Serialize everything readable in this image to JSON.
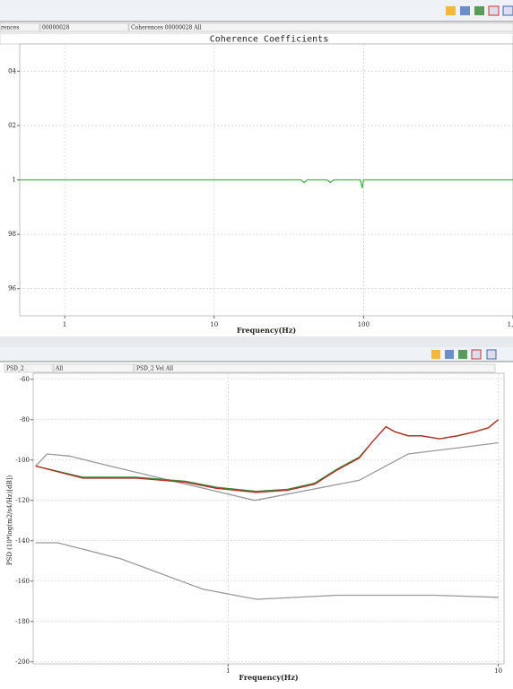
{
  "panels": [
    {
      "selectors": [
        "rences",
        "00000028",
        "Coherences 00000028 All"
      ]
    },
    {
      "selectors": [
        "PSD_2",
        "All",
        "PSD_2 Vel All"
      ]
    }
  ],
  "chart_data": [
    {
      "type": "line",
      "title": "Coherence Coefficients",
      "x_label": "Frequency(Hz)",
      "log_x": true,
      "grid": true,
      "xlim": [
        0.5,
        1000
      ],
      "xticks": [
        1,
        10,
        100,
        {
          "value": 1000,
          "label": "1,"
        }
      ],
      "ylim": [
        0.95,
        1.05
      ],
      "yticks": [
        {
          "value": 1.04,
          "label": "04"
        },
        {
          "value": 1.02,
          "label": "02"
        },
        1,
        {
          "value": 0.98,
          "label": "98"
        },
        {
          "value": 0.96,
          "label": "96"
        }
      ],
      "series": [
        {
          "color": "#4cae4c",
          "x": [
            0.5,
            38,
            40,
            42,
            57,
            60,
            63,
            95,
            98,
            100,
            1000
          ],
          "values": [
            1,
            1,
            0.999,
            1,
            1,
            0.999,
            1,
            1,
            0.997,
            1,
            1
          ]
        }
      ]
    },
    {
      "type": "line",
      "y_label": "PSD (10*log(m2/s4/Hz)[dB])",
      "x_label": "Frequency(Hz)",
      "log_x": true,
      "grid": true,
      "xlim": [
        0.19,
        10.5
      ],
      "xticks": [
        1,
        10
      ],
      "ylim": [
        -201,
        -57
      ],
      "yticks": [
        -60,
        -80,
        -100,
        -120,
        -140,
        -160,
        -180,
        -200
      ],
      "series": [
        {
          "color": "#999999",
          "x": [
            0.194,
            0.214,
            0.258,
            0.393,
            1.256,
            3.06,
            4.64,
            10
          ],
          "values": [
            -103,
            -97,
            -98,
            -104,
            -120,
            -110,
            -97,
            -91.5
          ]
        },
        {
          "color": "#999999",
          "x": [
            0.194,
            0.234,
            0.402,
            0.808,
            1.275,
            2.53,
            5.83,
            10
          ],
          "values": [
            -141,
            -141,
            -149,
            -164,
            -169,
            -167,
            -167,
            -168
          ]
        },
        {
          "color": "#3a8a3a",
          "x": [
            0.194,
            0.29,
            0.457,
            0.694,
            0.906,
            1.27,
            1.66,
            2.09,
            2.53,
            3.06,
            3.42,
            3.84,
            4.14,
            4.64,
            5.2,
            6.06,
            7.05,
            8.2,
            9.2,
            10
          ],
          "values": [
            -103,
            -108.5,
            -108.5,
            -110.5,
            -113.5,
            -115.5,
            -114.5,
            -111.5,
            -104.5,
            -98.5,
            -91,
            -83.5,
            -86,
            -88,
            -88,
            -89.5,
            -88,
            -86,
            -84,
            -80
          ]
        },
        {
          "color": "#b52a22",
          "x": [
            0.194,
            0.29,
            0.457,
            0.694,
            0.906,
            1.27,
            1.66,
            2.09,
            2.53,
            3.06,
            3.42,
            3.84,
            4.14,
            4.64,
            5.2,
            6.06,
            7.05,
            8.2,
            9.2,
            10
          ],
          "values": [
            -103,
            -109,
            -109,
            -111,
            -114,
            -116,
            -115,
            -112,
            -105,
            -99,
            -91,
            -83.5,
            -86,
            -88,
            -88,
            -89.5,
            -88,
            -86,
            -84,
            -80
          ]
        }
      ]
    }
  ]
}
